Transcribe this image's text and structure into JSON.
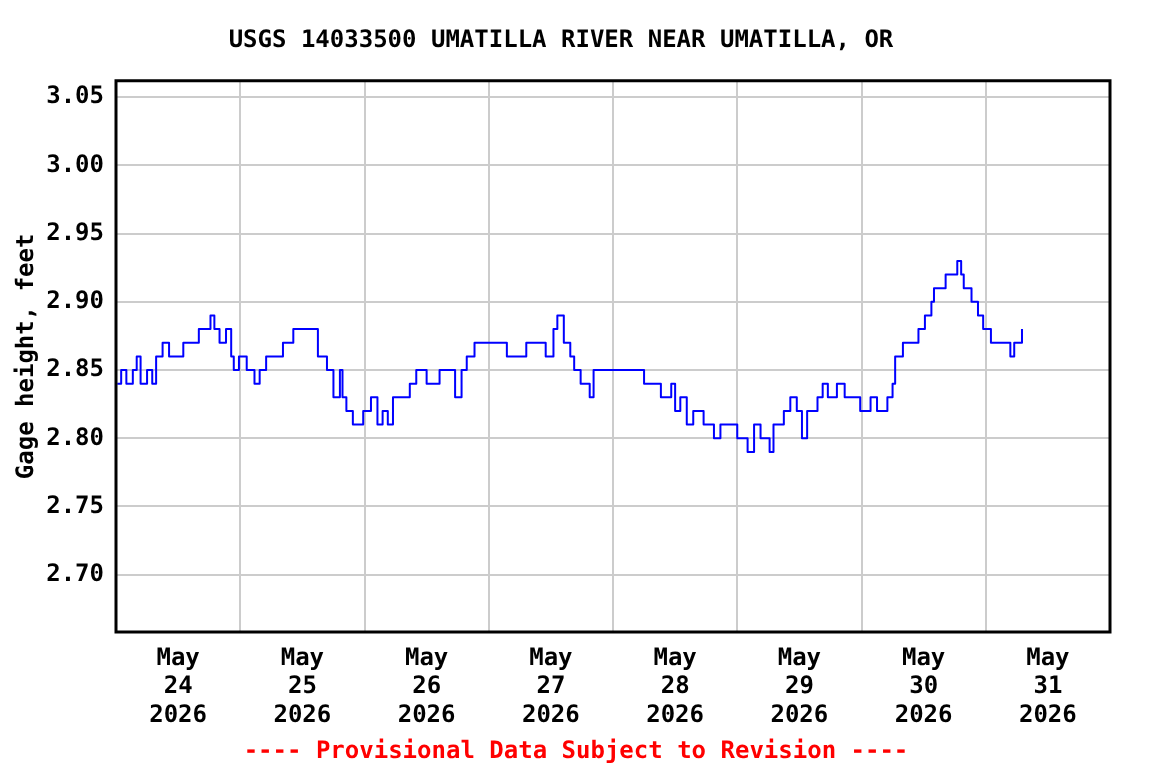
{
  "chart_data": {
    "type": "step",
    "title": "USGS 14033500 UMATILLA RIVER NEAR UMATILLA, OR",
    "ylabel": "Gage height, feet",
    "annotations": [
      "---- Provisional Data Subject to Revision ----"
    ],
    "xlim": [
      "2026-05-24",
      "2026-06-01"
    ],
    "xticks": [
      {
        "value": "2026-05-24T12:00",
        "label": "May 24 2026"
      },
      {
        "value": "2026-05-25",
        "label": null
      },
      {
        "value": "2026-05-25T12:00",
        "label": "May 25 2026"
      },
      {
        "value": "2026-05-26",
        "label": null
      },
      {
        "value": "2026-05-26T12:00",
        "label": "May 26 2026"
      },
      {
        "value": "2026-05-27",
        "label": null
      },
      {
        "value": "2026-05-27T12:00",
        "label": "May 27 2026"
      },
      {
        "value": "2026-05-28",
        "label": null
      },
      {
        "value": "2026-05-28T12:00",
        "label": "May 28 2026"
      },
      {
        "value": "2026-05-29",
        "label": null
      },
      {
        "value": "2026-05-29T12:00",
        "label": "May 29 2026"
      },
      {
        "value": "2026-05-30",
        "label": null
      },
      {
        "value": "2026-05-30T12:00",
        "label": "May 30 2026"
      },
      {
        "value": "2026-05-31",
        "label": null
      },
      {
        "value": "2026-05-31T12:00",
        "label": "May 31 2026"
      }
    ],
    "ylim": [
      2.658,
      3.062
    ],
    "yticks": [
      {
        "value": 2.7,
        "label": "2.70"
      },
      {
        "value": 2.75,
        "label": "2.75"
      },
      {
        "value": 2.8,
        "label": "2.80"
      },
      {
        "value": 2.85,
        "label": "2.85"
      },
      {
        "value": 2.9,
        "label": "2.90"
      },
      {
        "value": 2.95,
        "label": "2.95"
      },
      {
        "value": 3.0,
        "label": "3.00"
      },
      {
        "value": 3.05,
        "label": "3.05"
      }
    ],
    "grid": true,
    "legend": false,
    "marker": "none",
    "line_style": "solid",
    "series": [
      {
        "color": "#0000ff",
        "x": [
          "2026-05-24T00:15",
          "2026-05-24T01:00",
          "2026-05-24T02:00",
          "2026-05-24T03:15",
          "2026-05-24T04:00",
          "2026-05-24T04:45",
          "2026-05-24T06:00",
          "2026-05-24T07:00",
          "2026-05-24T07:45",
          "2026-05-24T09:00",
          "2026-05-24T10:15",
          "2026-05-24T11:30",
          "2026-05-24T13:00",
          "2026-05-24T14:45",
          "2026-05-24T16:00",
          "2026-05-24T17:30",
          "2026-05-24T18:15",
          "2026-05-24T19:00",
          "2026-05-24T20:00",
          "2026-05-24T21:15",
          "2026-05-24T22:15",
          "2026-05-24T22:45",
          "2026-05-24T23:45",
          "2026-05-25T01:15",
          "2026-05-25T02:45",
          "2026-05-25T03:45",
          "2026-05-25T05:00",
          "2026-05-25T07:00",
          "2026-05-25T08:15",
          "2026-05-25T10:15",
          "2026-05-25T12:15",
          "2026-05-25T14:00",
          "2026-05-25T15:00",
          "2026-05-25T16:45",
          "2026-05-25T18:00",
          "2026-05-25T19:15",
          "2026-05-25T19:45",
          "2026-05-25T20:30",
          "2026-05-25T21:45",
          "2026-05-25T23:45",
          "2026-05-26T01:15",
          "2026-05-26T02:30",
          "2026-05-26T03:30",
          "2026-05-26T04:30",
          "2026-05-26T05:30",
          "2026-05-26T06:45",
          "2026-05-26T08:45",
          "2026-05-26T10:00",
          "2026-05-26T12:00",
          "2026-05-26T14:30",
          "2026-05-26T17:30",
          "2026-05-26T18:45",
          "2026-05-26T19:45",
          "2026-05-26T21:15",
          "2026-05-26T23:30",
          "2026-05-27T03:30",
          "2026-05-27T07:15",
          "2026-05-27T09:15",
          "2026-05-27T11:00",
          "2026-05-27T12:30",
          "2026-05-27T13:15",
          "2026-05-27T14:30",
          "2026-05-27T15:45",
          "2026-05-27T16:30",
          "2026-05-27T17:45",
          "2026-05-27T19:30",
          "2026-05-27T20:15",
          "2026-05-27T21:15",
          "2026-05-27T22:45",
          "2026-05-28T02:45",
          "2026-05-28T04:00",
          "2026-05-28T06:00",
          "2026-05-28T09:15",
          "2026-05-28T11:15",
          "2026-05-28T12:00",
          "2026-05-28T13:00",
          "2026-05-28T14:15",
          "2026-05-28T15:30",
          "2026-05-28T17:30",
          "2026-05-28T19:30",
          "2026-05-28T20:45",
          "2026-05-28T23:30",
          "2026-05-29T00:00",
          "2026-05-29T02:00",
          "2026-05-29T03:15",
          "2026-05-29T04:30",
          "2026-05-29T06:15",
          "2026-05-29T07:00",
          "2026-05-29T09:00",
          "2026-05-29T10:15",
          "2026-05-29T11:30",
          "2026-05-29T12:30",
          "2026-05-29T13:30",
          "2026-05-29T15:30",
          "2026-05-29T16:30",
          "2026-05-29T17:30",
          "2026-05-29T19:15",
          "2026-05-29T20:45",
          "2026-05-29T22:30",
          "2026-05-29T23:45",
          "2026-05-30T01:45",
          "2026-05-30T03:00",
          "2026-05-30T05:00",
          "2026-05-30T06:00",
          "2026-05-30T06:30",
          "2026-05-30T08:00",
          "2026-05-30T09:30",
          "2026-05-30T11:00",
          "2026-05-30T12:15",
          "2026-05-30T13:30",
          "2026-05-30T14:00",
          "2026-05-30T15:00",
          "2026-05-30T16:15",
          "2026-05-30T18:00",
          "2026-05-30T18:30",
          "2026-05-30T19:15",
          "2026-05-30T19:45",
          "2026-05-30T21:15",
          "2026-05-30T22:30",
          "2026-05-30T23:30",
          "2026-05-31T01:00",
          "2026-05-31T02:00",
          "2026-05-31T04:15",
          "2026-05-31T04:45",
          "2026-05-31T05:30",
          "2026-05-31T07:00"
        ],
        "values": [
          2.84,
          2.85,
          2.84,
          2.85,
          2.86,
          2.84,
          2.85,
          2.84,
          2.86,
          2.87,
          2.86,
          2.86,
          2.87,
          2.87,
          2.88,
          2.88,
          2.89,
          2.88,
          2.87,
          2.88,
          2.86,
          2.85,
          2.86,
          2.85,
          2.84,
          2.85,
          2.86,
          2.86,
          2.87,
          2.88,
          2.88,
          2.88,
          2.86,
          2.85,
          2.83,
          2.85,
          2.83,
          2.82,
          2.81,
          2.82,
          2.83,
          2.81,
          2.82,
          2.81,
          2.83,
          2.83,
          2.84,
          2.85,
          2.84,
          2.85,
          2.83,
          2.85,
          2.86,
          2.87,
          2.87,
          2.86,
          2.87,
          2.87,
          2.86,
          2.88,
          2.89,
          2.87,
          2.86,
          2.85,
          2.84,
          2.83,
          2.85,
          2.85,
          2.85,
          2.85,
          2.85,
          2.84,
          2.83,
          2.84,
          2.82,
          2.83,
          2.81,
          2.82,
          2.81,
          2.8,
          2.81,
          2.81,
          2.8,
          2.79,
          2.81,
          2.8,
          2.79,
          2.81,
          2.82,
          2.83,
          2.82,
          2.8,
          2.82,
          2.83,
          2.84,
          2.83,
          2.84,
          2.83,
          2.83,
          2.82,
          2.83,
          2.82,
          2.83,
          2.84,
          2.86,
          2.87,
          2.87,
          2.88,
          2.89,
          2.9,
          2.91,
          2.91,
          2.92,
          2.92,
          2.93,
          2.92,
          2.91,
          2.9,
          2.89,
          2.88,
          2.87,
          2.87,
          2.87,
          2.86,
          2.87,
          2.88
        ]
      }
    ]
  }
}
